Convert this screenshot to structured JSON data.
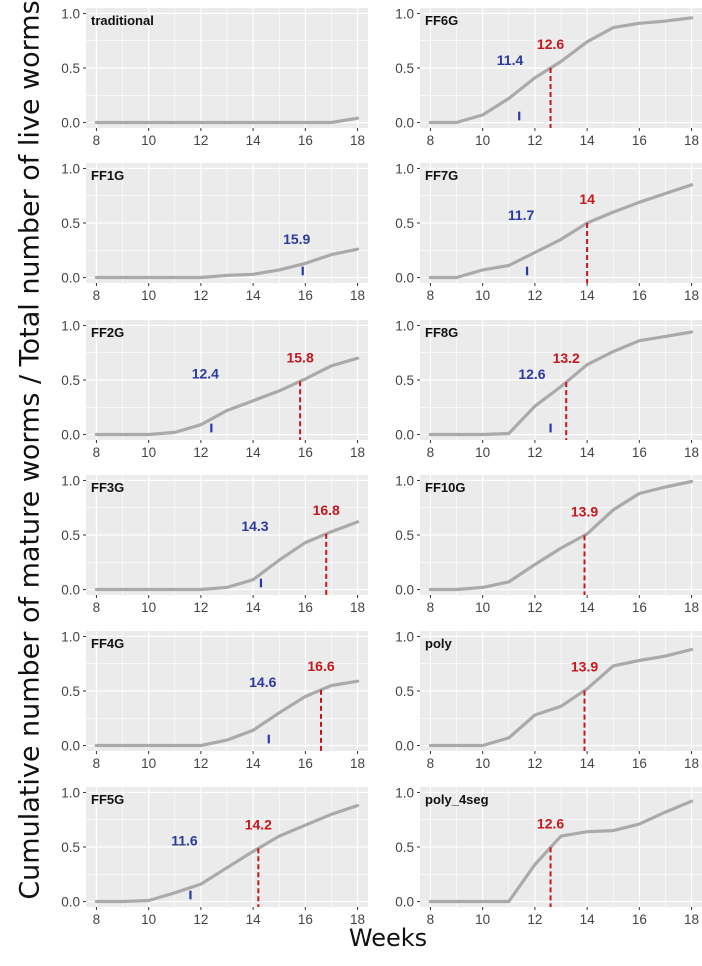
{
  "figure": {
    "ylabel": "Cumulative number of mature worms / Total number of live worms",
    "xlabel": "Weeks"
  },
  "style": {
    "panel_bg": "#ebebeb",
    "grid": "#ffffff",
    "line": "#aaaaaa",
    "blue": "#2b3aa0",
    "red": "#c8161d",
    "tick_text": "#444444"
  },
  "chart_data": [
    {
      "type": "line",
      "title": "traditional",
      "x": [
        8,
        9,
        10,
        11,
        12,
        13,
        14,
        15,
        16,
        17,
        18
      ],
      "y": [
        0,
        0,
        0,
        0,
        0,
        0,
        0,
        0,
        0,
        0,
        0.04
      ],
      "xlim": [
        7.6,
        18.4
      ],
      "ylim": [
        -0.05,
        1.05
      ],
      "xticks": [
        8,
        10,
        12,
        14,
        16,
        18
      ],
      "yticks": [
        0.0,
        0.5,
        1.0
      ],
      "ytick_labels": [
        "0.0",
        "0.5",
        "1.0"
      ],
      "grid": true,
      "blue_marker": null,
      "red_marker": null
    },
    {
      "type": "line",
      "title": "FF6G",
      "x": [
        8,
        9,
        10,
        11,
        12,
        13,
        14,
        15,
        16,
        17,
        18
      ],
      "y": [
        0,
        0,
        0.07,
        0.22,
        0.41,
        0.56,
        0.74,
        0.87,
        0.91,
        0.93,
        0.96
      ],
      "xlim": [
        7.6,
        18.4
      ],
      "ylim": [
        -0.05,
        1.05
      ],
      "xticks": [
        8,
        10,
        12,
        14,
        16,
        18
      ],
      "yticks": [
        0.0,
        0.5,
        1.0
      ],
      "ytick_labels": [
        "0.0",
        "0.5",
        "1.0"
      ],
      "grid": true,
      "blue_marker": {
        "x": 11.4,
        "label": "11.4"
      },
      "red_marker": {
        "x": 12.6,
        "label": "12.6"
      }
    },
    {
      "type": "line",
      "title": "FF1G",
      "x": [
        8,
        9,
        10,
        11,
        12,
        13,
        14,
        15,
        16,
        17,
        18
      ],
      "y": [
        0,
        0,
        0,
        0,
        0,
        0.02,
        0.03,
        0.07,
        0.13,
        0.21,
        0.26
      ],
      "xlim": [
        7.6,
        18.4
      ],
      "ylim": [
        -0.05,
        1.05
      ],
      "xticks": [
        8,
        10,
        12,
        14,
        16,
        18
      ],
      "yticks": [
        0.0,
        0.5,
        1.0
      ],
      "ytick_labels": [
        "0.0",
        "0.5",
        "1.0"
      ],
      "grid": true,
      "blue_marker": {
        "x": 15.9,
        "label": "15.9"
      },
      "red_marker": null
    },
    {
      "type": "line",
      "title": "FF7G",
      "x": [
        8,
        9,
        10,
        11,
        12,
        13,
        14,
        15,
        16,
        17,
        18
      ],
      "y": [
        0,
        0,
        0.07,
        0.11,
        0.23,
        0.35,
        0.5,
        0.6,
        0.69,
        0.77,
        0.85
      ],
      "xlim": [
        7.6,
        18.4
      ],
      "ylim": [
        -0.05,
        1.05
      ],
      "xticks": [
        8,
        10,
        12,
        14,
        16,
        18
      ],
      "yticks": [
        0.0,
        0.5,
        1.0
      ],
      "ytick_labels": [
        "0.0",
        "0.5",
        "1.0"
      ],
      "grid": true,
      "blue_marker": {
        "x": 11.7,
        "label": "11.7"
      },
      "red_marker": {
        "x": 14,
        "label": "14"
      }
    },
    {
      "type": "line",
      "title": "FF2G",
      "x": [
        8,
        9,
        10,
        11,
        12,
        13,
        14,
        15,
        16,
        17,
        18
      ],
      "y": [
        0,
        0,
        0,
        0.02,
        0.09,
        0.22,
        0.31,
        0.4,
        0.51,
        0.63,
        0.7
      ],
      "xlim": [
        7.6,
        18.4
      ],
      "ylim": [
        -0.05,
        1.05
      ],
      "xticks": [
        8,
        10,
        12,
        14,
        16,
        18
      ],
      "yticks": [
        0.0,
        0.5,
        1.0
      ],
      "ytick_labels": [
        "0.0",
        "0.5",
        "1.0"
      ],
      "grid": true,
      "blue_marker": {
        "x": 12.4,
        "label": "12.4"
      },
      "red_marker": {
        "x": 15.8,
        "label": "15.8"
      }
    },
    {
      "type": "line",
      "title": "FF8G",
      "x": [
        8,
        9,
        10,
        11,
        12,
        13,
        14,
        15,
        16,
        17,
        18
      ],
      "y": [
        0,
        0,
        0,
        0.01,
        0.26,
        0.44,
        0.64,
        0.76,
        0.86,
        0.9,
        0.94
      ],
      "xlim": [
        7.6,
        18.4
      ],
      "ylim": [
        -0.05,
        1.05
      ],
      "xticks": [
        8,
        10,
        12,
        14,
        16,
        18
      ],
      "yticks": [
        0.0,
        0.5,
        1.0
      ],
      "ytick_labels": [
        "0.0",
        "0.5",
        "1.0"
      ],
      "grid": true,
      "blue_marker": {
        "x": 12.6,
        "label": "12.6"
      },
      "red_marker": {
        "x": 13.2,
        "label": "13.2"
      }
    },
    {
      "type": "line",
      "title": "FF3G",
      "x": [
        8,
        9,
        10,
        11,
        12,
        13,
        14,
        15,
        16,
        17,
        18
      ],
      "y": [
        0,
        0,
        0,
        0,
        0,
        0.02,
        0.09,
        0.27,
        0.43,
        0.53,
        0.62
      ],
      "xlim": [
        7.6,
        18.4
      ],
      "ylim": [
        -0.05,
        1.05
      ],
      "xticks": [
        8,
        10,
        12,
        14,
        16,
        18
      ],
      "yticks": [
        0.0,
        0.5,
        1.0
      ],
      "ytick_labels": [
        "0.0",
        "0.5",
        "1.0"
      ],
      "grid": true,
      "blue_marker": {
        "x": 14.3,
        "label": "14.3"
      },
      "red_marker": {
        "x": 16.8,
        "label": "16.8"
      }
    },
    {
      "type": "line",
      "title": "FF10G",
      "x": [
        8,
        9,
        10,
        11,
        12,
        13,
        14,
        15,
        16,
        17,
        18
      ],
      "y": [
        0,
        0,
        0.02,
        0.07,
        0.23,
        0.38,
        0.51,
        0.73,
        0.88,
        0.94,
        0.99
      ],
      "xlim": [
        7.6,
        18.4
      ],
      "ylim": [
        -0.05,
        1.05
      ],
      "xticks": [
        8,
        10,
        12,
        14,
        16,
        18
      ],
      "yticks": [
        0.0,
        0.5,
        1.0
      ],
      "ytick_labels": [
        "0.0",
        "0.5",
        "1.0"
      ],
      "grid": true,
      "blue_marker": null,
      "red_marker": {
        "x": 13.9,
        "label": "13.9"
      }
    },
    {
      "type": "line",
      "title": "FF4G",
      "x": [
        8,
        9,
        10,
        11,
        12,
        13,
        14,
        15,
        16,
        17,
        18
      ],
      "y": [
        0,
        0,
        0,
        0,
        0,
        0.05,
        0.14,
        0.3,
        0.45,
        0.55,
        0.59
      ],
      "xlim": [
        7.6,
        18.4
      ],
      "ylim": [
        -0.05,
        1.05
      ],
      "xticks": [
        8,
        10,
        12,
        14,
        16,
        18
      ],
      "yticks": [
        0.0,
        0.5,
        1.0
      ],
      "ytick_labels": [
        "0.0",
        "0.5",
        "1.0"
      ],
      "grid": true,
      "blue_marker": {
        "x": 14.6,
        "label": "14.6"
      },
      "red_marker": {
        "x": 16.6,
        "label": "16.6"
      }
    },
    {
      "type": "line",
      "title": "poly",
      "x": [
        8,
        9,
        10,
        11,
        12,
        13,
        14,
        15,
        16,
        17,
        18
      ],
      "y": [
        0,
        0,
        0,
        0.07,
        0.28,
        0.36,
        0.52,
        0.73,
        0.78,
        0.82,
        0.88
      ],
      "xlim": [
        7.6,
        18.4
      ],
      "ylim": [
        -0.05,
        1.05
      ],
      "xticks": [
        8,
        10,
        12,
        14,
        16,
        18
      ],
      "yticks": [
        0.0,
        0.5,
        1.0
      ],
      "ytick_labels": [
        "0.0",
        "0.5",
        "1.0"
      ],
      "grid": true,
      "blue_marker": null,
      "red_marker": {
        "x": 13.9,
        "label": "13.9"
      }
    },
    {
      "type": "line",
      "title": "FF5G",
      "x": [
        8,
        9,
        10,
        11,
        12,
        13,
        14,
        15,
        16,
        17,
        18
      ],
      "y": [
        0,
        0,
        0.01,
        0.08,
        0.16,
        0.31,
        0.46,
        0.6,
        0.7,
        0.8,
        0.88
      ],
      "xlim": [
        7.6,
        18.4
      ],
      "ylim": [
        -0.05,
        1.05
      ],
      "xticks": [
        8,
        10,
        12,
        14,
        16,
        18
      ],
      "yticks": [
        0.0,
        0.5,
        1.0
      ],
      "ytick_labels": [
        "0.0",
        "0.5",
        "1.0"
      ],
      "grid": true,
      "blue_marker": {
        "x": 11.6,
        "label": "11.6"
      },
      "red_marker": {
        "x": 14.2,
        "label": "14.2"
      }
    },
    {
      "type": "line",
      "title": "poly_4seg",
      "x": [
        8,
        9,
        10,
        11,
        12,
        13,
        14,
        15,
        16,
        17,
        18
      ],
      "y": [
        0,
        0,
        0,
        0,
        0.34,
        0.6,
        0.64,
        0.65,
        0.71,
        0.82,
        0.92
      ],
      "xlim": [
        7.6,
        18.4
      ],
      "ylim": [
        -0.05,
        1.05
      ],
      "xticks": [
        8,
        10,
        12,
        14,
        16,
        18
      ],
      "yticks": [
        0.0,
        0.5,
        1.0
      ],
      "ytick_labels": [
        "0.0",
        "0.5",
        "1.0"
      ],
      "grid": true,
      "blue_marker": null,
      "red_marker": {
        "x": 12.6,
        "label": "12.6"
      }
    }
  ]
}
